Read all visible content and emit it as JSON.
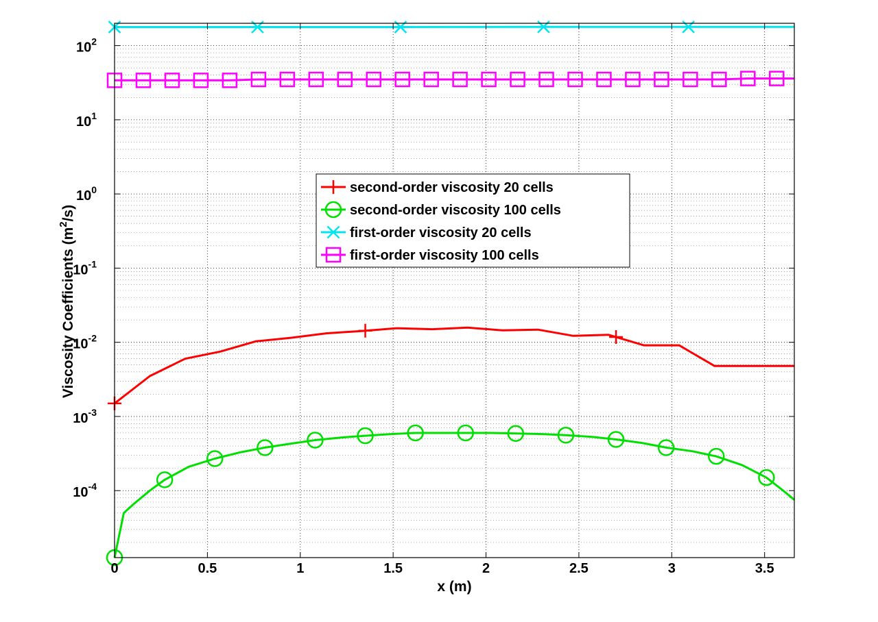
{
  "chart_data": {
    "type": "line",
    "xlabel": "x (m)",
    "ylabel": "Viscosity Coefficients (m",
    "ylabel_sup": "2",
    "ylabel_tail": "/s)",
    "xlim": [
      0,
      3.66
    ],
    "ylim": [
      1.25e-05,
      200
    ],
    "yscale": "log",
    "grid": true,
    "legend_position": "center",
    "x_ticks": [
      0,
      0.5,
      1,
      1.5,
      2,
      2.5,
      3,
      3.5
    ],
    "x_tick_labels": [
      "0",
      "0.5",
      "1",
      "1.5",
      "2",
      "2.5",
      "3",
      "3.5"
    ],
    "y_ticks": [
      {
        "value": 0.0001,
        "base": "10",
        "exp": "-4"
      },
      {
        "value": 0.001,
        "base": "10",
        "exp": "-3"
      },
      {
        "value": 0.01,
        "base": "10",
        "exp": "-2"
      },
      {
        "value": 0.1,
        "base": "10",
        "exp": "-1"
      },
      {
        "value": 1,
        "base": "10",
        "exp": "0"
      },
      {
        "value": 10,
        "base": "10",
        "exp": "1"
      },
      {
        "value": 100,
        "base": "10",
        "exp": "2"
      }
    ],
    "series": [
      {
        "name": "second-order viscosity 20 cells",
        "color": "#ff0000",
        "marker": "plus",
        "x": [
          0,
          0.19,
          0.38,
          0.57,
          0.76,
          0.95,
          1.14,
          1.33,
          1.52,
          1.71,
          1.9,
          2.09,
          2.28,
          2.47,
          2.66,
          2.85,
          3.04,
          3.23,
          3.42,
          3.66
        ],
        "y": [
          0.0015,
          0.0035,
          0.006,
          0.0075,
          0.0103,
          0.0115,
          0.0132,
          0.0142,
          0.0155,
          0.015,
          0.0158,
          0.0145,
          0.0148,
          0.0122,
          0.0126,
          0.0091,
          0.0091,
          0.0048,
          0.0048,
          0.0048
        ],
        "marker_x": [
          0,
          1.35,
          2.7
        ]
      },
      {
        "name": "second-order viscosity 100 cells",
        "color": "#00e000",
        "marker": "circle",
        "x": [
          0,
          0.05,
          0.1,
          0.19,
          0.27,
          0.4,
          0.54,
          0.68,
          0.81,
          0.95,
          1.08,
          1.22,
          1.35,
          1.49,
          1.62,
          1.76,
          1.89,
          2.03,
          2.16,
          2.3,
          2.43,
          2.57,
          2.7,
          2.84,
          2.97,
          3.11,
          3.24,
          3.38,
          3.51,
          3.6,
          3.66
        ],
        "y": [
          1.25e-05,
          5e-05,
          6.5e-05,
          0.0001,
          0.00014,
          0.00021,
          0.00027,
          0.00033,
          0.00038,
          0.00043,
          0.00048,
          0.00052,
          0.00055,
          0.00058,
          0.0006,
          0.0006,
          0.0006,
          0.0006,
          0.00059,
          0.00058,
          0.00056,
          0.00053,
          0.00049,
          0.00044,
          0.00038,
          0.00034,
          0.00029,
          0.00022,
          0.00015,
          0.0001,
          7.5e-05
        ],
        "marker_x": [
          0,
          0.27,
          0.54,
          0.81,
          1.08,
          1.35,
          1.62,
          1.89,
          2.16,
          2.43,
          2.7,
          2.97,
          3.24,
          3.51
        ]
      },
      {
        "name": "first-order viscosity 20 cells",
        "color": "#00e5ee",
        "marker": "x",
        "x": [
          0,
          0.77,
          1.54,
          2.31,
          3.09,
          3.66
        ],
        "y": [
          178,
          178,
          178,
          179,
          179,
          179
        ],
        "marker_x": [
          0,
          0.77,
          1.54,
          2.31,
          3.09
        ]
      },
      {
        "name": "first-order viscosity 100 cells",
        "color": "#ff00ff",
        "marker": "square",
        "x": [
          0,
          0.155,
          0.31,
          0.465,
          0.62,
          0.775,
          0.93,
          1.085,
          1.24,
          1.395,
          1.55,
          1.705,
          1.86,
          2.015,
          2.17,
          2.325,
          2.48,
          2.635,
          2.79,
          2.945,
          3.1,
          3.255,
          3.41,
          3.565,
          3.66
        ],
        "y": [
          34,
          34,
          34,
          34,
          34,
          35,
          35,
          35,
          35,
          35,
          35,
          35,
          35,
          35,
          35,
          35,
          35,
          35,
          35,
          35,
          35,
          35,
          36,
          36,
          36
        ],
        "marker_x": [
          0,
          0.155,
          0.31,
          0.465,
          0.62,
          0.775,
          0.93,
          1.085,
          1.24,
          1.395,
          1.55,
          1.705,
          1.86,
          2.015,
          2.17,
          2.325,
          2.48,
          2.635,
          2.79,
          2.945,
          3.1,
          3.255,
          3.41,
          3.565
        ]
      }
    ]
  }
}
